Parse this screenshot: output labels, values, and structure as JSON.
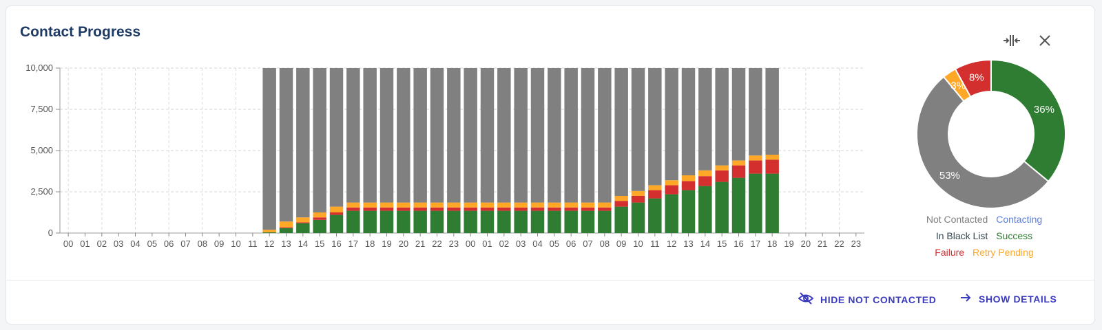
{
  "header": {
    "title": "Contact Progress",
    "compress_icon": "compress-horizontal-icon",
    "close_icon": "close-icon"
  },
  "actions": {
    "hide_label": "HIDE NOT CONTACTED",
    "hide_icon": "eye-off-icon",
    "details_label": "SHOW DETAILS",
    "details_icon": "arrow-right-icon"
  },
  "colors": {
    "not_contacted": "#808080",
    "contacting": "#5b7fe0",
    "in_black_list": "#37474f",
    "success": "#2e7d32",
    "failure": "#d32f2f",
    "retry_pending": "#ffa726",
    "title": "#1f3a63",
    "action": "#3b3bbd"
  },
  "legend": [
    {
      "label": "Not Contacted",
      "color": "#808080"
    },
    {
      "label": "Contacting",
      "color": "#5b7fe0"
    },
    {
      "label": "In Black List",
      "color": "#37474f"
    },
    {
      "label": "Success",
      "color": "#2e7d32"
    },
    {
      "label": "Failure",
      "color": "#d32f2f"
    },
    {
      "label": "Retry Pending",
      "color": "#ffa726"
    }
  ],
  "chart_data": [
    {
      "type": "bar",
      "stacked": true,
      "ylim": [
        0,
        10000
      ],
      "yticks": [
        "0",
        "2,500",
        "5,000",
        "7,500",
        "10,000"
      ],
      "ytick_values": [
        0,
        2500,
        5000,
        7500,
        10000
      ],
      "grid": true,
      "categories": [
        "00",
        "01",
        "02",
        "03",
        "04",
        "05",
        "06",
        "07",
        "08",
        "09",
        "10",
        "11",
        "12",
        "13",
        "14",
        "15",
        "16",
        "17",
        "18",
        "19",
        "20",
        "21",
        "22",
        "23",
        "00",
        "01",
        "02",
        "03",
        "04",
        "05",
        "06",
        "07",
        "08",
        "09",
        "10",
        "11",
        "12",
        "13",
        "14",
        "15",
        "16",
        "17",
        "18",
        "19",
        "20",
        "21",
        "22",
        "23"
      ],
      "series": [
        {
          "name": "Success",
          "key": "success",
          "values": [
            0,
            0,
            0,
            0,
            0,
            0,
            0,
            0,
            0,
            0,
            0,
            0,
            50,
            300,
            600,
            800,
            1100,
            1350,
            1350,
            1350,
            1350,
            1350,
            1350,
            1350,
            1350,
            1350,
            1350,
            1350,
            1350,
            1350,
            1350,
            1350,
            1350,
            1600,
            1850,
            2100,
            2350,
            2600,
            2850,
            3100,
            3350,
            3600,
            3600,
            0,
            0,
            0,
            0,
            0
          ]
        },
        {
          "name": "Failure",
          "key": "failure",
          "values": [
            0,
            0,
            0,
            0,
            0,
            0,
            0,
            0,
            0,
            0,
            0,
            0,
            0,
            50,
            50,
            150,
            150,
            200,
            200,
            200,
            200,
            200,
            200,
            200,
            200,
            200,
            200,
            200,
            200,
            200,
            200,
            200,
            200,
            350,
            400,
            500,
            550,
            550,
            600,
            700,
            750,
            800,
            850,
            0,
            0,
            0,
            0,
            0
          ]
        },
        {
          "name": "Retry Pending",
          "key": "retry_pending",
          "values": [
            0,
            0,
            0,
            0,
            0,
            0,
            0,
            0,
            0,
            0,
            0,
            0,
            150,
            350,
            300,
            300,
            350,
            300,
            300,
            300,
            300,
            300,
            300,
            300,
            300,
            300,
            300,
            300,
            300,
            300,
            300,
            300,
            300,
            300,
            300,
            300,
            300,
            350,
            350,
            300,
            300,
            300,
            300,
            0,
            0,
            0,
            0,
            0
          ]
        },
        {
          "name": "Not Contacted",
          "key": "not_contacted",
          "values": [
            0,
            0,
            0,
            0,
            0,
            0,
            0,
            0,
            0,
            0,
            0,
            0,
            9800,
            9300,
            9050,
            8750,
            8400,
            8150,
            8150,
            8150,
            8150,
            8150,
            8150,
            8150,
            8150,
            8150,
            8150,
            8150,
            8150,
            8150,
            8150,
            8150,
            8150,
            7750,
            7450,
            7100,
            6800,
            6500,
            6200,
            5900,
            5600,
            5300,
            5250,
            0,
            0,
            0,
            0,
            0
          ]
        }
      ]
    },
    {
      "type": "pie",
      "donut": true,
      "slices": [
        {
          "name": "Success",
          "key": "success",
          "value": 36,
          "label": "36%"
        },
        {
          "name": "Not Contacted",
          "key": "not_contacted",
          "value": 53,
          "label": "53%"
        },
        {
          "name": "Retry Pending",
          "key": "retry_pending",
          "value": 3,
          "label": "3%"
        },
        {
          "name": "Failure",
          "key": "failure",
          "value": 8,
          "label": "8%"
        }
      ]
    }
  ]
}
